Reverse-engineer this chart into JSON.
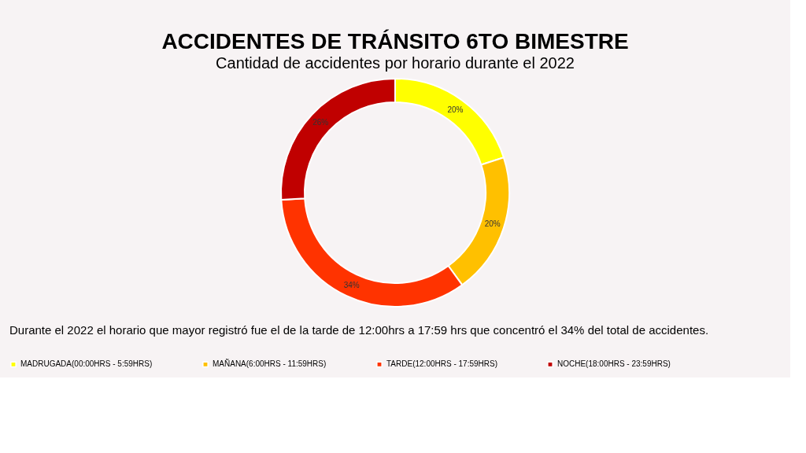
{
  "chart_data": {
    "type": "donut",
    "title": "ACCIDENTES DE TRÁNSITO 6TO BIMESTRE",
    "subtitle": "Cantidad de accidentes por horario durante el 2022",
    "categories": [
      "MADRUGADA(00:00HRS - 5:59HRS)",
      "MAÑANA(6:00HRS - 11:59HRS)",
      "TARDE(12:00HRS - 17:59HRS)",
      "NOCHE(18:00HRS - 23:59HRS)"
    ],
    "values": [
      20,
      20,
      34,
      26
    ],
    "value_labels": [
      "20%",
      "20%",
      "34%",
      "26%"
    ],
    "colors": [
      "#ffff00",
      "#ffc000",
      "#ff3300",
      "#c00000"
    ],
    "legend": "bottom",
    "annotations": [
      "Durante el 2022 el horario que mayor registró fue el de la tarde de 12:00hrs a 17:59 hrs que concentró el 34% del total de accidentes."
    ]
  }
}
